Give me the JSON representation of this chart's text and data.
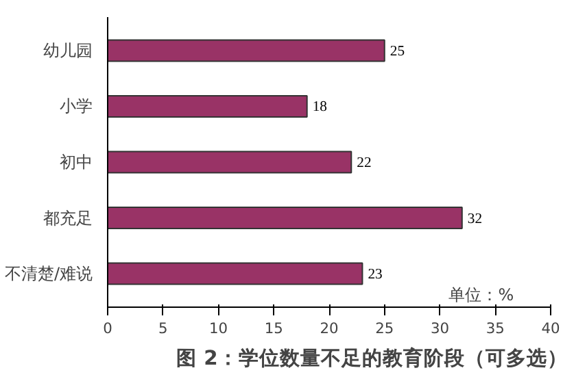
{
  "chart_data": {
    "type": "bar",
    "orientation": "horizontal",
    "title": "图 2：学位数量不足的教育阶段（可多选）",
    "categories": [
      "幼儿园",
      "小学",
      "初中",
      "都充足",
      "不清楚/难说"
    ],
    "values": [
      25,
      18,
      22,
      32,
      23
    ],
    "color": "#993366",
    "xlim": [
      0,
      40
    ],
    "xticks": [
      0,
      5,
      10,
      15,
      20,
      25,
      30,
      35,
      40
    ],
    "data_labels": true,
    "grid": false,
    "annotations": [
      "单位：%"
    ]
  }
}
